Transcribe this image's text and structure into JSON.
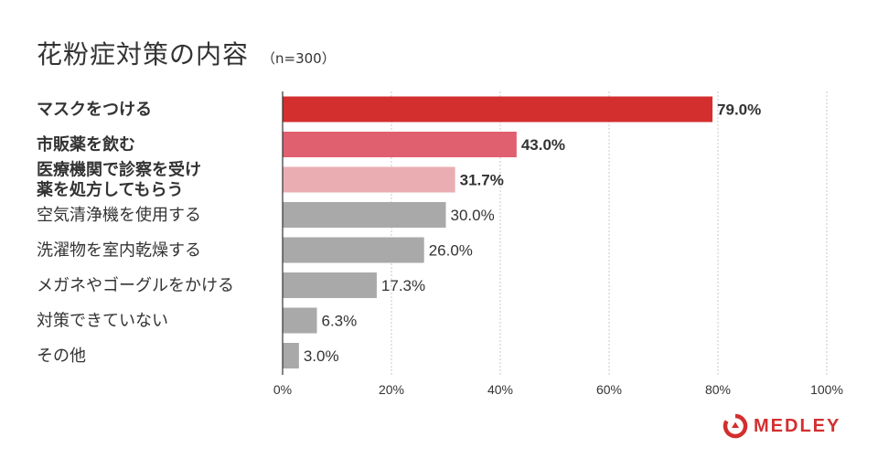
{
  "chart_data": {
    "type": "bar",
    "orientation": "horizontal",
    "title": "花粉症対策の内容",
    "subtitle": "（n=300）",
    "categories": [
      [
        "マスクをつける"
      ],
      [
        "市販薬を飲む"
      ],
      [
        "医療機関で診察を受け",
        "薬を処方してもらう"
      ],
      [
        "空気清浄機を使用する"
      ],
      [
        "洗濯物を室内乾燥する"
      ],
      [
        "メガネやゴーグルをかける"
      ],
      [
        "対策できていない"
      ],
      [
        "その他"
      ]
    ],
    "values": [
      79.0,
      43.0,
      31.7,
      30.0,
      26.0,
      17.3,
      6.3,
      3.0
    ],
    "value_labels": [
      "79.0%",
      "43.0%",
      "31.7%",
      "30.0%",
      "26.0%",
      "17.3%",
      "6.3%",
      "3.0%"
    ],
    "highlighted": [
      true,
      true,
      true,
      false,
      false,
      false,
      false,
      false
    ],
    "colors": [
      "#d32f2f",
      "#e06070",
      "#eaaeb2",
      "#a9a9a9",
      "#a9a9a9",
      "#a9a9a9",
      "#a9a9a9",
      "#a9a9a9"
    ],
    "xlim": [
      0,
      100
    ],
    "x_ticks": [
      0,
      20,
      40,
      60,
      80,
      100
    ],
    "x_tick_labels": [
      "0%",
      "20%",
      "40%",
      "60%",
      "80%",
      "100%"
    ],
    "grid": "vertical-dotted",
    "legend": "none"
  },
  "brand": {
    "logo_text": "MEDLEY",
    "color": "#d32f2f"
  }
}
